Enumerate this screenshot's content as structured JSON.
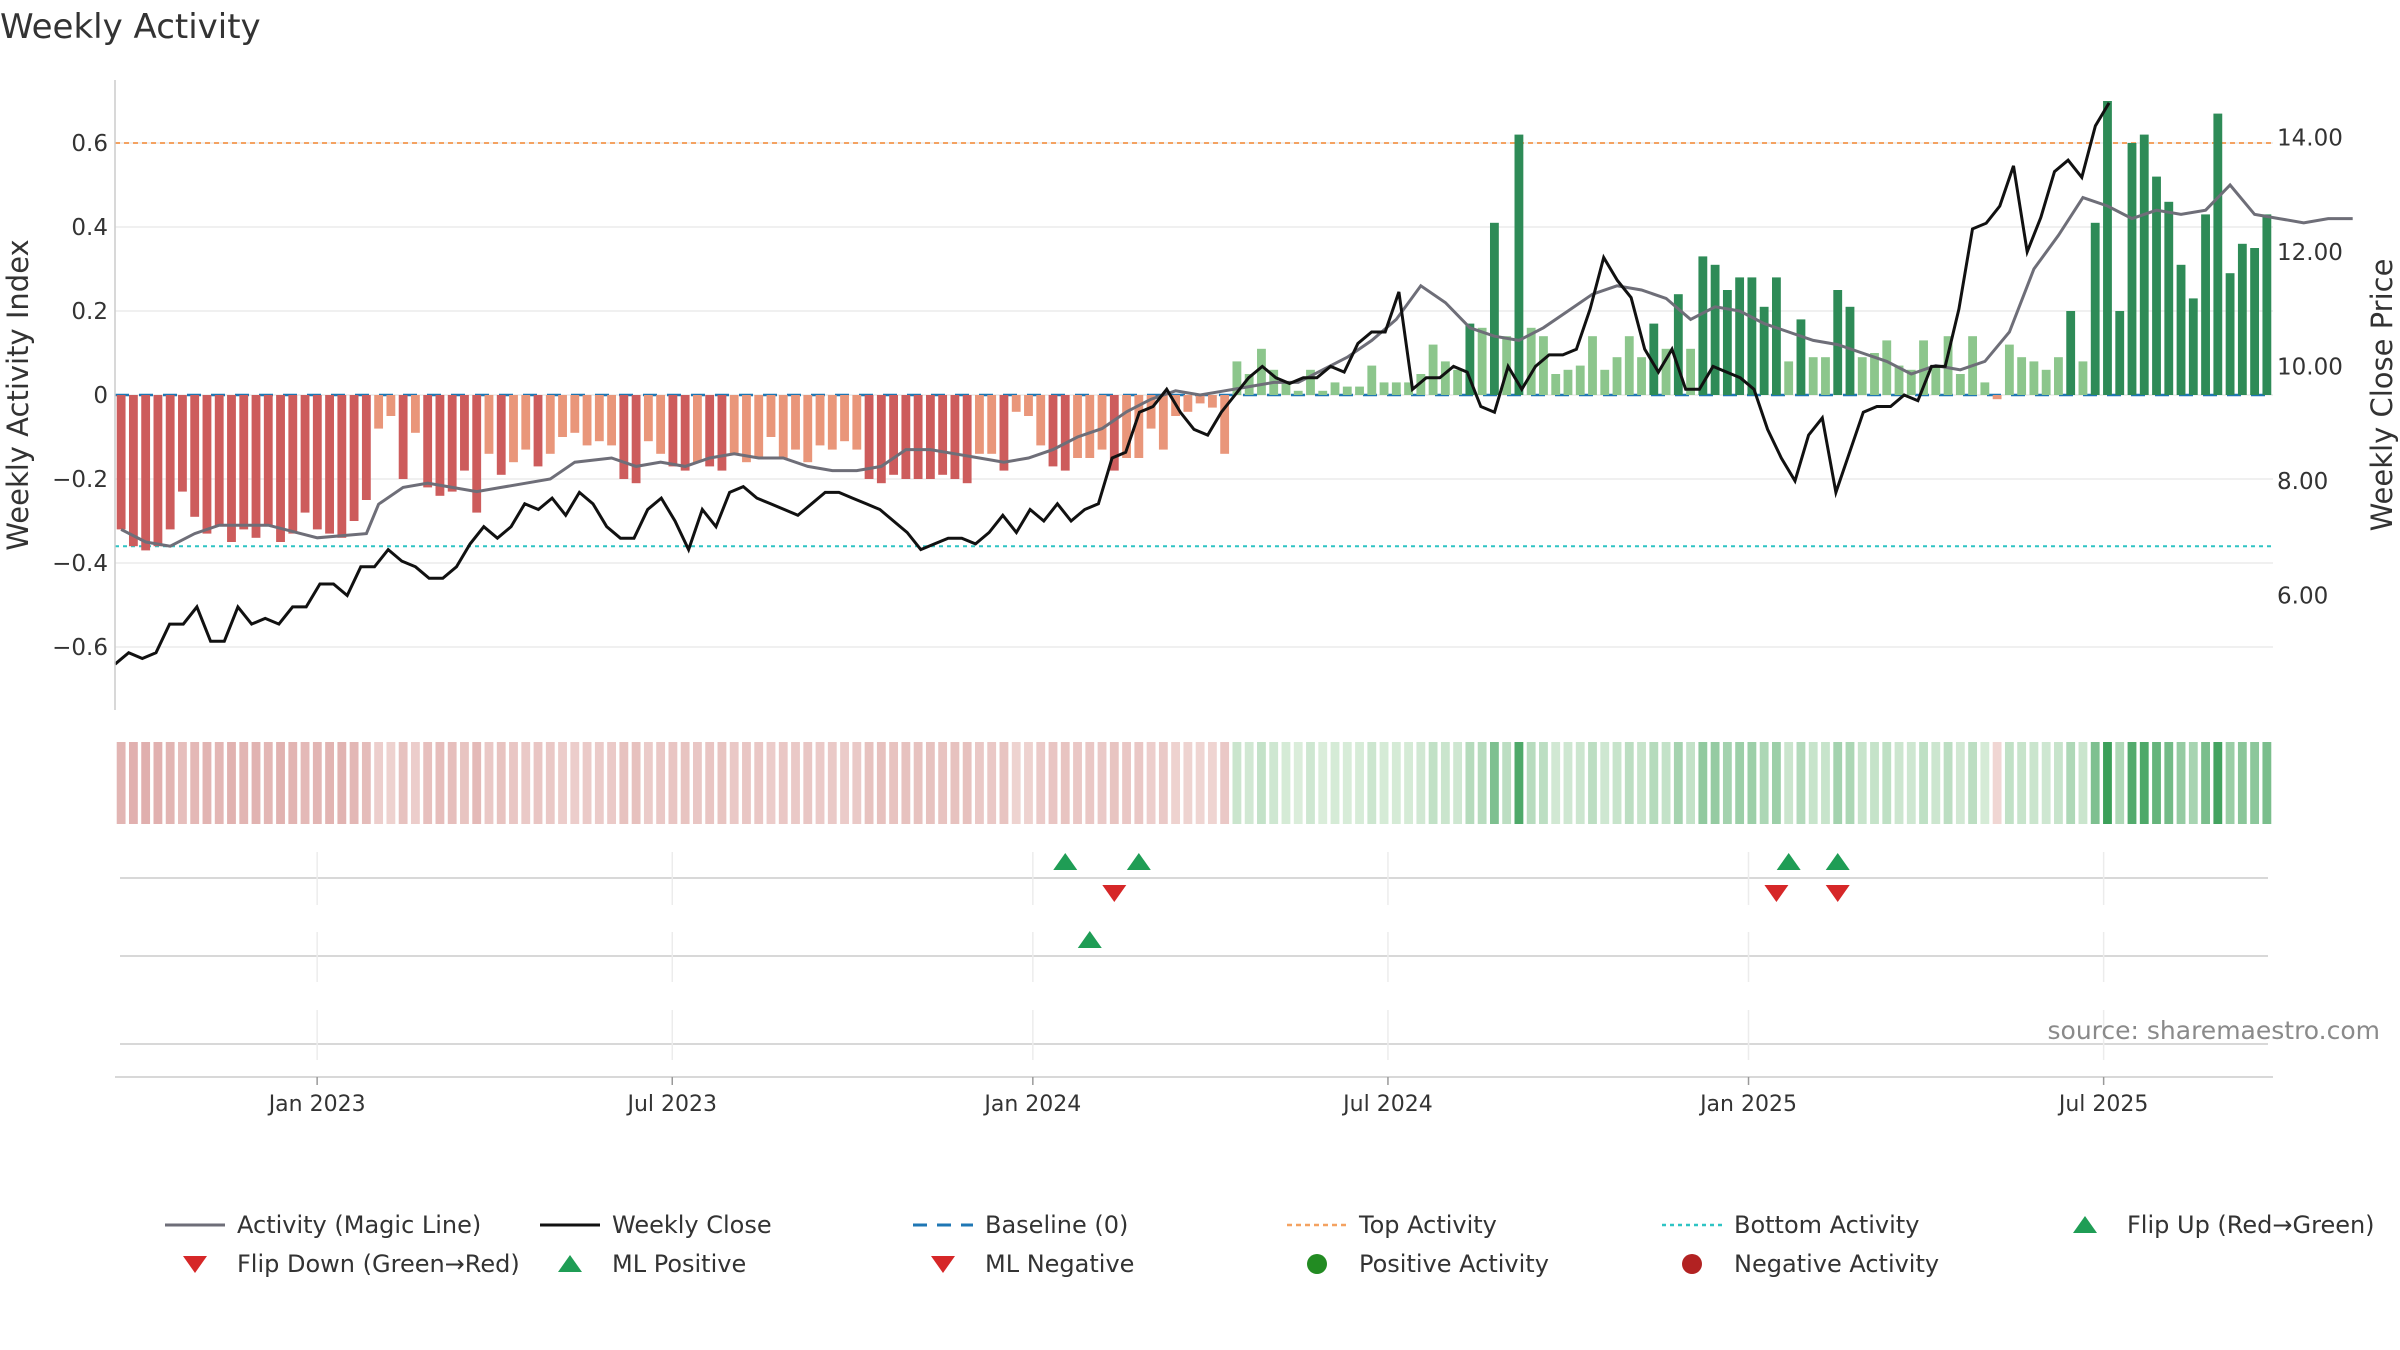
{
  "chart_data": {
    "type": "bar",
    "title": "Weekly Activity",
    "ylabel_left": "Weekly Activity Index",
    "ylabel_right": "Weekly Close Price",
    "source": "source: sharemaestro.com",
    "left_axis": {
      "range": [
        -0.75,
        0.75
      ],
      "ticks": [
        0.6,
        0.4,
        0.2,
        0,
        -0.2,
        -0.4,
        -0.6
      ],
      "tick_labels": [
        "0.6",
        "0.4",
        "0.2",
        "0",
        "−0.2",
        "−0.4",
        "−0.6"
      ]
    },
    "right_axis": {
      "range": [
        4.0,
        15.0
      ],
      "ticks": [
        14,
        12,
        10,
        8,
        6
      ],
      "tick_labels": [
        "14.00",
        "12.00",
        "10.00",
        "8.00",
        "6.00"
      ]
    },
    "x_range_weeks": [
      0,
      158
    ],
    "x_ticks": [
      {
        "label": "Jan 2023",
        "week": 14.8
      },
      {
        "label": "Jul 2023",
        "week": 40.8
      },
      {
        "label": "Jan 2024",
        "week": 67.2
      },
      {
        "label": "Jul 2024",
        "week": 93.2
      },
      {
        "label": "Jan 2025",
        "week": 119.6
      },
      {
        "label": "Jul 2025",
        "week": 145.6
      }
    ],
    "top_activity": 0.6,
    "bottom_activity": -0.36,
    "baseline": 0,
    "activity": [
      -0.32,
      -0.36,
      -0.37,
      -0.36,
      -0.32,
      -0.23,
      -0.29,
      -0.33,
      -0.31,
      -0.35,
      -0.32,
      -0.34,
      -0.31,
      -0.35,
      -0.33,
      -0.28,
      -0.32,
      -0.33,
      -0.34,
      -0.3,
      -0.25,
      -0.08,
      -0.05,
      -0.2,
      -0.09,
      -0.22,
      -0.24,
      -0.23,
      -0.18,
      -0.28,
      -0.14,
      -0.19,
      -0.16,
      -0.13,
      -0.17,
      -0.14,
      -0.1,
      -0.09,
      -0.12,
      -0.11,
      -0.12,
      -0.2,
      -0.21,
      -0.11,
      -0.14,
      -0.17,
      -0.18,
      -0.16,
      -0.17,
      -0.18,
      -0.14,
      -0.16,
      -0.15,
      -0.1,
      -0.15,
      -0.13,
      -0.16,
      -0.12,
      -0.13,
      -0.11,
      -0.13,
      -0.2,
      -0.21,
      -0.19,
      -0.2,
      -0.2,
      -0.2,
      -0.19,
      -0.2,
      -0.21,
      -0.14,
      -0.14,
      -0.18,
      -0.04,
      -0.05,
      -0.12,
      -0.17,
      -0.18,
      -0.15,
      -0.15,
      -0.13,
      -0.18,
      -0.15,
      -0.15,
      -0.08,
      -0.13,
      -0.05,
      -0.04,
      -0.02,
      -0.03,
      -0.14,
      0.08,
      0.05,
      0.11,
      0.06,
      0.03,
      0.01,
      0.06,
      0.01,
      0.03,
      0.02,
      0.02,
      0.07,
      0.03,
      0.03,
      0.03,
      0.05,
      0.12,
      0.08,
      0.06,
      0.17,
      0.16,
      0.41,
      0.14,
      0.62,
      0.16,
      0.14,
      0.05,
      0.06,
      0.07,
      0.14,
      0.06,
      0.09,
      0.14,
      0.09,
      0.17,
      0.11,
      0.24,
      0.11,
      0.33,
      0.31,
      0.25,
      0.28,
      0.28,
      0.21,
      0.28,
      0.08,
      0.18,
      0.09,
      0.09,
      0.25,
      0.21,
      0.09,
      0.1,
      0.13,
      0.07,
      0.06,
      0.13,
      0.07,
      0.14,
      0.05,
      0.14,
      0.03,
      -0.01,
      0.12,
      0.09,
      0.08,
      0.06,
      0.09,
      0.2,
      0.08,
      0.41,
      0.7,
      0.2,
      0.6,
      0.62,
      0.52,
      0.46,
      0.31,
      0.23,
      0.43,
      0.67,
      0.29,
      0.36,
      0.35,
      0.43
    ],
    "magic_line": [
      [
        0,
        -0.32
      ],
      [
        2,
        -0.35
      ],
      [
        4,
        -0.36
      ],
      [
        6,
        -0.33
      ],
      [
        8,
        -0.31
      ],
      [
        12,
        -0.31
      ],
      [
        16,
        -0.34
      ],
      [
        20,
        -0.33
      ],
      [
        21,
        -0.26
      ],
      [
        23,
        -0.22
      ],
      [
        25,
        -0.21
      ],
      [
        27,
        -0.22
      ],
      [
        29,
        -0.23
      ],
      [
        31,
        -0.22
      ],
      [
        33,
        -0.21
      ],
      [
        35,
        -0.2
      ],
      [
        37,
        -0.16
      ],
      [
        40,
        -0.15
      ],
      [
        42,
        -0.17
      ],
      [
        44,
        -0.16
      ],
      [
        46,
        -0.17
      ],
      [
        48,
        -0.15
      ],
      [
        50,
        -0.14
      ],
      [
        52,
        -0.15
      ],
      [
        54,
        -0.15
      ],
      [
        56,
        -0.17
      ],
      [
        58,
        -0.18
      ],
      [
        60,
        -0.18
      ],
      [
        62,
        -0.17
      ],
      [
        64,
        -0.13
      ],
      [
        66,
        -0.13
      ],
      [
        68,
        -0.14
      ],
      [
        70,
        -0.15
      ],
      [
        72,
        -0.16
      ],
      [
        74,
        -0.15
      ],
      [
        76,
        -0.13
      ],
      [
        78,
        -0.1
      ],
      [
        80,
        -0.08
      ],
      [
        82,
        -0.04
      ],
      [
        84,
        -0.01
      ],
      [
        86,
        0.01
      ],
      [
        88,
        0.0
      ],
      [
        90,
        0.01
      ],
      [
        92,
        0.02
      ],
      [
        94,
        0.03
      ],
      [
        96,
        0.03
      ],
      [
        98,
        0.06
      ],
      [
        100,
        0.09
      ],
      [
        102,
        0.13
      ],
      [
        104,
        0.18
      ],
      [
        106,
        0.26
      ],
      [
        108,
        0.22
      ],
      [
        110,
        0.16
      ],
      [
        112,
        0.14
      ],
      [
        114,
        0.13
      ],
      [
        116,
        0.16
      ],
      [
        118,
        0.2
      ],
      [
        120,
        0.24
      ],
      [
        122,
        0.26
      ],
      [
        124,
        0.25
      ],
      [
        126,
        0.23
      ],
      [
        128,
        0.18
      ],
      [
        130,
        0.21
      ],
      [
        132,
        0.2
      ],
      [
        134,
        0.17
      ],
      [
        136,
        0.15
      ],
      [
        138,
        0.13
      ],
      [
        140,
        0.12
      ],
      [
        142,
        0.1
      ],
      [
        144,
        0.08
      ],
      [
        146,
        0.05
      ],
      [
        148,
        0.07
      ],
      [
        150,
        0.06
      ],
      [
        152,
        0.08
      ],
      [
        154,
        0.15
      ],
      [
        156,
        0.3
      ],
      [
        158,
        0.38
      ],
      [
        160,
        0.47
      ],
      [
        162,
        0.45
      ],
      [
        164,
        0.42
      ],
      [
        166,
        0.44
      ],
      [
        168,
        0.43
      ],
      [
        170,
        0.44
      ],
      [
        172,
        0.5
      ],
      [
        174,
        0.43
      ],
      [
        176,
        0.42
      ],
      [
        178,
        0.41
      ],
      [
        180,
        0.42
      ],
      [
        182,
        0.42
      ]
    ],
    "weekly_close": [
      [
        0,
        4.8
      ],
      [
        1,
        5.0
      ],
      [
        2,
        4.9
      ],
      [
        3,
        5.0
      ],
      [
        4,
        5.5
      ],
      [
        5,
        5.5
      ],
      [
        6,
        5.8
      ],
      [
        7,
        5.2
      ],
      [
        8,
        5.2
      ],
      [
        9,
        5.8
      ],
      [
        10,
        5.5
      ],
      [
        11,
        5.6
      ],
      [
        12,
        5.5
      ],
      [
        13,
        5.8
      ],
      [
        14,
        5.8
      ],
      [
        15,
        6.2
      ],
      [
        16,
        6.2
      ],
      [
        17,
        6.0
      ],
      [
        18,
        6.5
      ],
      [
        19,
        6.5
      ],
      [
        20,
        6.8
      ],
      [
        21,
        6.6
      ],
      [
        22,
        6.5
      ],
      [
        23,
        6.3
      ],
      [
        24,
        6.3
      ],
      [
        25,
        6.5
      ],
      [
        26,
        6.9
      ],
      [
        27,
        7.2
      ],
      [
        28,
        7.0
      ],
      [
        29,
        7.2
      ],
      [
        30,
        7.6
      ],
      [
        31,
        7.5
      ],
      [
        32,
        7.7
      ],
      [
        33,
        7.4
      ],
      [
        34,
        7.8
      ],
      [
        35,
        7.6
      ],
      [
        36,
        7.2
      ],
      [
        37,
        7.0
      ],
      [
        38,
        7.0
      ],
      [
        39,
        7.5
      ],
      [
        40,
        7.7
      ],
      [
        41,
        7.3
      ],
      [
        42,
        6.8
      ],
      [
        43,
        7.5
      ],
      [
        44,
        7.2
      ],
      [
        45,
        7.8
      ],
      [
        46,
        7.9
      ],
      [
        47,
        7.7
      ],
      [
        48,
        7.6
      ],
      [
        49,
        7.5
      ],
      [
        50,
        7.4
      ],
      [
        51,
        7.6
      ],
      [
        52,
        7.8
      ],
      [
        53,
        7.8
      ],
      [
        54,
        7.7
      ],
      [
        55,
        7.6
      ],
      [
        56,
        7.5
      ],
      [
        57,
        7.3
      ],
      [
        58,
        7.1
      ],
      [
        59,
        6.8
      ],
      [
        60,
        6.9
      ],
      [
        61,
        7.0
      ],
      [
        62,
        7.0
      ],
      [
        63,
        6.9
      ],
      [
        64,
        7.1
      ],
      [
        65,
        7.4
      ],
      [
        66,
        7.1
      ],
      [
        67,
        7.5
      ],
      [
        68,
        7.3
      ],
      [
        69,
        7.6
      ],
      [
        70,
        7.3
      ],
      [
        71,
        7.5
      ],
      [
        72,
        7.6
      ],
      [
        73,
        8.4
      ],
      [
        74,
        8.5
      ],
      [
        75,
        9.2
      ],
      [
        76,
        9.3
      ],
      [
        77,
        9.6
      ],
      [
        78,
        9.2
      ],
      [
        79,
        8.9
      ],
      [
        80,
        8.8
      ],
      [
        81,
        9.2
      ],
      [
        82,
        9.5
      ],
      [
        83,
        9.8
      ],
      [
        84,
        10.0
      ],
      [
        85,
        9.8
      ],
      [
        86,
        9.7
      ],
      [
        87,
        9.8
      ],
      [
        88,
        9.8
      ],
      [
        89,
        10.0
      ],
      [
        90,
        9.9
      ],
      [
        91,
        10.4
      ],
      [
        92,
        10.6
      ],
      [
        93,
        10.6
      ],
      [
        94,
        11.3
      ],
      [
        95,
        9.6
      ],
      [
        96,
        9.8
      ],
      [
        97,
        9.8
      ],
      [
        98,
        10.0
      ],
      [
        99,
        9.9
      ],
      [
        100,
        9.3
      ],
      [
        101,
        9.2
      ],
      [
        102,
        10.0
      ],
      [
        103,
        9.6
      ],
      [
        104,
        10.0
      ],
      [
        105,
        10.2
      ],
      [
        106,
        10.2
      ],
      [
        107,
        10.3
      ],
      [
        108,
        11.0
      ],
      [
        109,
        11.9
      ],
      [
        110,
        11.5
      ],
      [
        111,
        11.2
      ],
      [
        112,
        10.3
      ],
      [
        113,
        9.9
      ],
      [
        114,
        10.3
      ],
      [
        115,
        9.6
      ],
      [
        116,
        9.6
      ],
      [
        117,
        10.0
      ],
      [
        118,
        9.9
      ],
      [
        119,
        9.8
      ],
      [
        120,
        9.6
      ],
      [
        121,
        8.9
      ],
      [
        122,
        8.4
      ],
      [
        123,
        8.0
      ],
      [
        124,
        8.8
      ],
      [
        125,
        9.1
      ],
      [
        126,
        7.8
      ],
      [
        127,
        8.5
      ],
      [
        128,
        9.2
      ],
      [
        129,
        9.3
      ],
      [
        130,
        9.3
      ],
      [
        131,
        9.5
      ],
      [
        132,
        9.4
      ],
      [
        133,
        10.0
      ],
      [
        134,
        10.0
      ],
      [
        135,
        11.0
      ],
      [
        136,
        12.4
      ],
      [
        137,
        12.5
      ],
      [
        138,
        12.8
      ],
      [
        139,
        13.5
      ],
      [
        140,
        12.0
      ],
      [
        141,
        12.6
      ],
      [
        142,
        13.4
      ],
      [
        143,
        13.6
      ],
      [
        144,
        13.3
      ],
      [
        145,
        14.2
      ],
      [
        146,
        14.6
      ]
    ],
    "heatmap_strip": [
      -0.32,
      -0.36,
      -0.37,
      -0.36,
      -0.32,
      -0.23,
      -0.29,
      -0.33,
      -0.31,
      -0.35,
      -0.32,
      -0.34,
      -0.31,
      -0.35,
      -0.33,
      -0.28,
      -0.32,
      -0.33,
      -0.34,
      -0.3,
      -0.25,
      -0.08,
      -0.05,
      -0.2,
      -0.09,
      -0.22,
      -0.24,
      -0.23,
      -0.18,
      -0.28,
      -0.14,
      -0.19,
      -0.16,
      -0.13,
      -0.17,
      -0.14,
      -0.1,
      -0.09,
      -0.12,
      -0.11,
      -0.12,
      -0.2,
      -0.21,
      -0.11,
      -0.14,
      -0.17,
      -0.18,
      -0.16,
      -0.17,
      -0.18,
      -0.14,
      -0.16,
      -0.15,
      -0.1,
      -0.15,
      -0.13,
      -0.16,
      -0.12,
      -0.13,
      -0.11,
      -0.13,
      -0.2,
      -0.21,
      -0.19,
      -0.2,
      -0.2,
      -0.2,
      -0.19,
      -0.2,
      -0.21,
      -0.14,
      -0.14,
      -0.18,
      -0.04,
      -0.05,
      -0.12,
      -0.17,
      -0.18,
      -0.15,
      -0.15,
      -0.13,
      -0.18,
      -0.15,
      -0.15,
      -0.08,
      -0.13,
      -0.05,
      -0.04,
      -0.02,
      -0.03,
      -0.14,
      0.08,
      0.05,
      0.11,
      0.06,
      0.03,
      0.01,
      0.06,
      0.01,
      0.03,
      0.02,
      0.02,
      0.07,
      0.03,
      0.03,
      0.03,
      0.05,
      0.12,
      0.08,
      0.06,
      0.17,
      0.16,
      0.41,
      0.14,
      0.62,
      0.16,
      0.14,
      0.05,
      0.06,
      0.07,
      0.14,
      0.06,
      0.09,
      0.14,
      0.09,
      0.17,
      0.11,
      0.24,
      0.11,
      0.33,
      0.31,
      0.25,
      0.28,
      0.28,
      0.21,
      0.28,
      0.08,
      0.18,
      0.09,
      0.09,
      0.25,
      0.21,
      0.09,
      0.1,
      0.13,
      0.07,
      0.06,
      0.13,
      0.07,
      0.14,
      0.05,
      0.14,
      0.03,
      -0.01,
      0.12,
      0.09,
      0.08,
      0.06,
      0.09,
      0.2,
      0.08,
      0.41,
      0.7,
      0.2,
      0.6,
      0.62,
      0.52,
      0.46,
      0.31,
      0.23,
      0.43,
      0.67,
      0.29,
      0.36,
      0.35,
      0.43
    ],
    "flip_up": [
      77,
      83,
      136,
      140
    ],
    "flip_down": [
      81,
      135,
      140
    ],
    "ml_positive": [
      79
    ],
    "legend": [
      {
        "key": "magic",
        "label": "Activity (Magic Line)"
      },
      {
        "key": "close",
        "label": "Weekly Close"
      },
      {
        "key": "baseline",
        "label": "Baseline (0)"
      },
      {
        "key": "top",
        "label": "Top Activity"
      },
      {
        "key": "bottom",
        "label": "Bottom Activity"
      },
      {
        "key": "flip_up",
        "label": "Flip Up (Red→Green)"
      },
      {
        "key": "flip_down",
        "label": "Flip Down (Green→Red)"
      },
      {
        "key": "ml_pos",
        "label": "ML Positive"
      },
      {
        "key": "ml_neg",
        "label": "ML Negative"
      },
      {
        "key": "pos_act",
        "label": "Positive Activity"
      },
      {
        "key": "neg_act",
        "label": "Negative Activity"
      }
    ],
    "colors": {
      "pos_strong": "#2e8b57",
      "pos_light": "#8cc68c",
      "neg_strong": "#cd5c5c",
      "neg_light": "#e9967a",
      "magic": "#6e6e78",
      "close": "#111111",
      "baseline": "#1f77b4",
      "top": "#f4a261",
      "bottom": "#2ec4c4",
      "flip_up": "#1f9d55",
      "flip_down": "#d62728",
      "pos_dot": "#228b22",
      "neg_dot": "#b22222"
    }
  }
}
